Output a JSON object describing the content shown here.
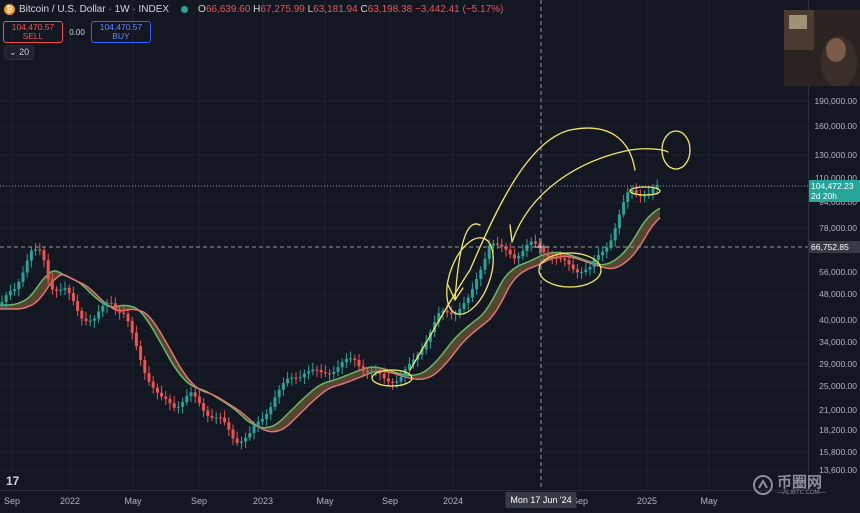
{
  "header": {
    "symbol": "Bitcoin / U.S. Dollar · 1W · INDEX",
    "ohlc": {
      "o": "66,639.60",
      "h": "67,275.99",
      "l": "63,181.94",
      "c": "63,198.38",
      "change": "−3,442.41 (−5.17%)"
    },
    "labels": {
      "o": "O",
      "h": "H",
      "l": "L",
      "c": "C"
    }
  },
  "trade": {
    "sell_price": "104,470.57",
    "sell_label": "SELL",
    "spread": "0.00",
    "buy_price": "104,470.57",
    "buy_label": "BUY"
  },
  "indicator": {
    "label": "20"
  },
  "price_axis": {
    "labels": [
      "190,000.00",
      "160,000.00",
      "130,000.00",
      "110,000.00",
      "94,000.00",
      "78,000.00",
      "56,000.00",
      "48,000.00",
      "40,000.00",
      "34,000.00",
      "29,000.00",
      "25,000.00",
      "21,000.00",
      "18,200.00",
      "15,800.00",
      "13,600.00"
    ],
    "current_price": "104,472.23",
    "countdown": "2d 20h",
    "crosshair_price": "66,752.85"
  },
  "time_axis": {
    "labels": [
      "Sep",
      "2022",
      "May",
      "Sep",
      "2023",
      "May",
      "Sep",
      "2024",
      "Sep",
      "2025",
      "May"
    ],
    "crosshair": "Mon 17 Jun '24"
  },
  "colors": {
    "up": "#26a69a",
    "down": "#ef5350",
    "ema_fast": "#66bb6a",
    "ema_slow": "#e57373",
    "annotation": "#f5e663",
    "bg": "#131722"
  },
  "brand": {
    "logo": "17",
    "watermark": "币圈网",
    "watermark_sub": "—ALIBTC.COM—"
  }
}
